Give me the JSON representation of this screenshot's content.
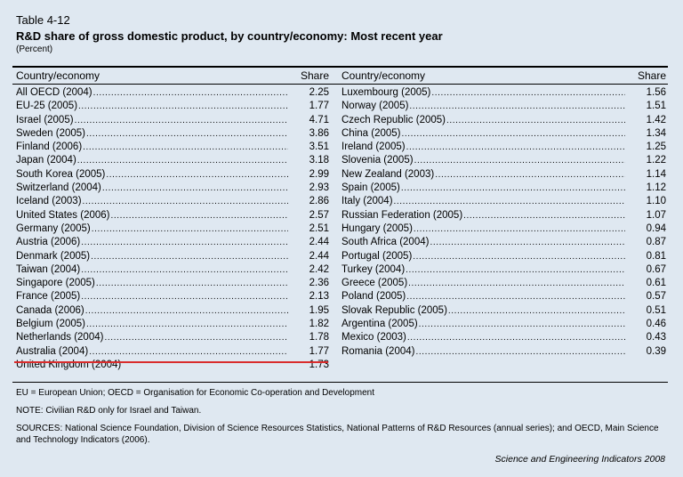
{
  "table_label": "Table 4-12",
  "table_title": "R&D share of gross domestic product, by country/economy: Most recent year",
  "table_unit": "(Percent)",
  "headers": {
    "country": "Country/economy",
    "share": "Share"
  },
  "left_rows": [
    {
      "country": "All OECD (2004)",
      "share": "2.25"
    },
    {
      "country": "EU-25 (2005)",
      "share": "1.77"
    },
    {
      "country": "Israel (2005)",
      "share": "4.71"
    },
    {
      "country": "Sweden (2005)",
      "share": "3.86"
    },
    {
      "country": "Finland (2006)",
      "share": "3.51"
    },
    {
      "country": "Japan (2004)",
      "share": "3.18"
    },
    {
      "country": "South Korea (2005)",
      "share": "2.99"
    },
    {
      "country": "Switzerland (2004)",
      "share": "2.93"
    },
    {
      "country": "Iceland (2003)",
      "share": "2.86"
    },
    {
      "country": "United States (2006)",
      "share": "2.57"
    },
    {
      "country": "Germany (2005)",
      "share": "2.51"
    },
    {
      "country": "Austria (2006)",
      "share": "2.44"
    },
    {
      "country": "Denmark (2005)",
      "share": "2.44"
    },
    {
      "country": "Taiwan (2004)",
      "share": "2.42"
    },
    {
      "country": "Singapore (2005)",
      "share": "2.36"
    },
    {
      "country": "France (2005)",
      "share": "2.13"
    },
    {
      "country": "Canada (2006)",
      "share": "1.95"
    },
    {
      "country": "Belgium (2005)",
      "share": "1.82"
    },
    {
      "country": "Netherlands (2004)",
      "share": "1.78"
    },
    {
      "country": "Australia (2004)",
      "share": "1.77"
    },
    {
      "country": "United Kingdom (2004)",
      "share": "1.73"
    }
  ],
  "right_rows": [
    {
      "country": "Luxembourg (2005)",
      "share": "1.56"
    },
    {
      "country": "Norway (2005)",
      "share": "1.51"
    },
    {
      "country": "Czech Republic (2005)",
      "share": "1.42"
    },
    {
      "country": "China (2005)",
      "share": "1.34"
    },
    {
      "country": "Ireland (2005)",
      "share": "1.25"
    },
    {
      "country": "Slovenia (2005)",
      "share": "1.22"
    },
    {
      "country": "New Zealand (2003)",
      "share": "1.14"
    },
    {
      "country": "Spain (2005)",
      "share": "1.12"
    },
    {
      "country": "Italy (2004)",
      "share": "1.10"
    },
    {
      "country": "Russian Federation (2005)",
      "share": "1.07"
    },
    {
      "country": "Hungary (2005)",
      "share": "0.94"
    },
    {
      "country": "South Africa (2004)",
      "share": "0.87"
    },
    {
      "country": "Portugal (2005)",
      "share": "0.81"
    },
    {
      "country": "Turkey (2004)",
      "share": "0.67"
    },
    {
      "country": "Greece (2005)",
      "share": "0.61"
    },
    {
      "country": "Poland (2005)",
      "share": "0.57"
    },
    {
      "country": "Slovak Republic (2005)",
      "share": "0.51"
    },
    {
      "country": "Argentina (2005)",
      "share": "0.46"
    },
    {
      "country": "Mexico (2003)",
      "share": "0.43"
    },
    {
      "country": "Romania (2004)",
      "share": "0.39"
    }
  ],
  "footnotes": {
    "abbrev": "EU = European Union; OECD = Organisation for Economic Co-operation and Development",
    "note": "NOTE: Civilian R&D only for Israel and Taiwan.",
    "sources": "SOURCES: National Science Foundation, Division of Science Resources Statistics, National Patterns of R&D Resources (annual series); and OECD, Main Science and Technology Indicators (2006)."
  },
  "credit": "Science and Engineering Indicators 2008",
  "colors": {
    "background": "#dfe8f1",
    "highlight_rule": "#d92c2c"
  }
}
